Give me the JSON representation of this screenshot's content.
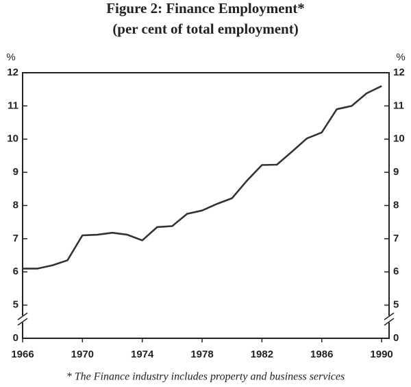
{
  "chart_data": {
    "type": "line",
    "title": "Figure 2: Finance Employment*",
    "subtitle": "(per cent of total employment)",
    "y_unit": "%",
    "footnote": "* The Finance industry includes property and business services",
    "x": [
      1966,
      1967,
      1968,
      1969,
      1970,
      1971,
      1972,
      1973,
      1974,
      1975,
      1976,
      1977,
      1978,
      1979,
      1980,
      1981,
      1982,
      1983,
      1984,
      1985,
      1986,
      1987,
      1988,
      1989,
      1990
    ],
    "series": [
      {
        "name": "Finance employment",
        "color": "#333333",
        "values": [
          6.1,
          6.1,
          6.2,
          6.35,
          7.1,
          7.12,
          7.18,
          7.12,
          6.95,
          7.35,
          7.38,
          7.75,
          7.85,
          8.05,
          8.22,
          8.75,
          9.22,
          9.23,
          9.62,
          10.02,
          10.2,
          10.9,
          11.0,
          11.38,
          11.6
        ]
      }
    ],
    "xlim": [
      1966,
      1990.5
    ],
    "xticks": [
      1966,
      1970,
      1974,
      1978,
      1982,
      1986,
      1990
    ],
    "ylim": [
      0,
      12
    ],
    "yticks": [
      0,
      5,
      6,
      7,
      8,
      9,
      10,
      11,
      12
    ],
    "axis_break": [
      0,
      4
    ],
    "right_axis": true
  }
}
